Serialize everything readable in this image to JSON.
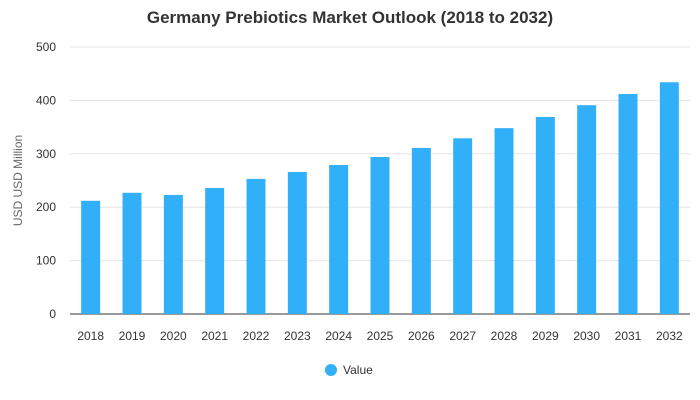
{
  "chart_data": {
    "type": "bar",
    "title": "Germany Prebiotics Market Outlook (2018 to 2032)",
    "xlabel": "",
    "ylabel": "USD USD Million",
    "categories": [
      "2018",
      "2019",
      "2020",
      "2021",
      "2022",
      "2023",
      "2024",
      "2025",
      "2026",
      "2027",
      "2028",
      "2029",
      "2030",
      "2031",
      "2032"
    ],
    "series": [
      {
        "name": "Value",
        "values": [
          212,
          227,
          223,
          236,
          253,
          266,
          279,
          294,
          311,
          329,
          348,
          369,
          391,
          412,
          434
        ]
      }
    ],
    "ylim": [
      0,
      500
    ],
    "yticks": [
      0,
      100,
      200,
      300,
      400,
      500
    ],
    "grid": true,
    "legend_position": "bottom-center",
    "colors": {
      "bar": "#31B0F9",
      "grid": "#e6e6e6",
      "axis": "#333333"
    }
  }
}
